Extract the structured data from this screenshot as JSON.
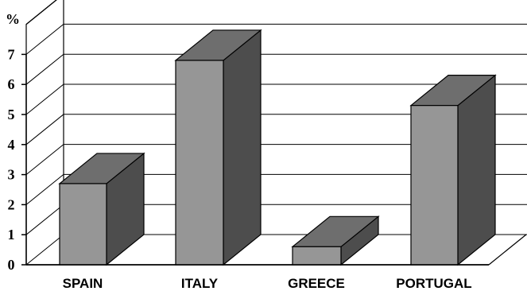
{
  "chart_data": {
    "type": "bar",
    "style": "3d-column",
    "categories": [
      "SPAIN",
      "ITALY",
      "GREECE",
      "PORTUGAL"
    ],
    "values": [
      2.7,
      6.8,
      0.6,
      5.3
    ],
    "ylabel": "%",
    "ylim": [
      0,
      7
    ],
    "yticks": [
      "0",
      "1",
      "2",
      "3",
      "4",
      "5",
      "6",
      "7"
    ],
    "grid": true,
    "legend": "none",
    "colors": {
      "front": "#969696",
      "top": "#6e6e6e",
      "side": "#4d4d4d",
      "outline": "#000000",
      "gridline": "#000000"
    }
  }
}
